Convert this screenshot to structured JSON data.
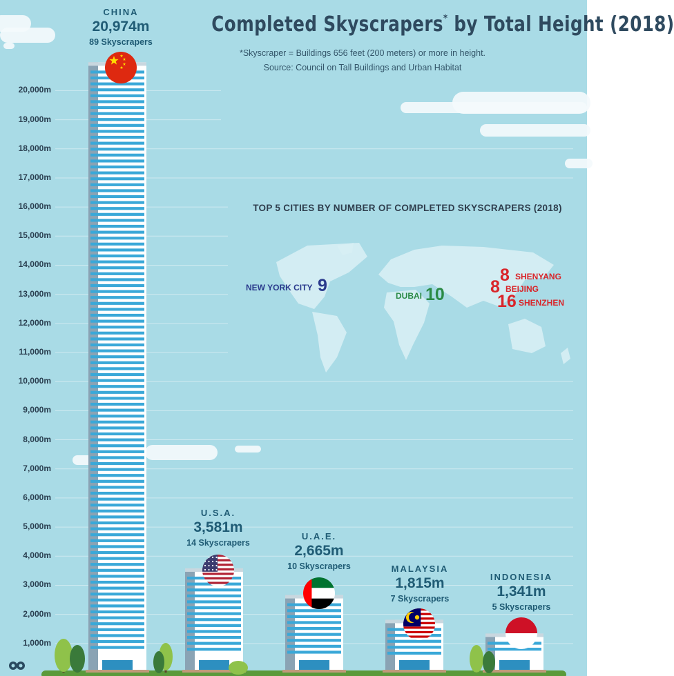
{
  "header": {
    "title": "Completed Skyscrapers",
    "title_asterisk": "*",
    "title_rest": " by Total Height (2018)",
    "note": "*Skyscraper = Buildings 656 feet (200 meters) or more in height.",
    "source": "Source: Council on Tall Buildings and Urban Habitat"
  },
  "chart_data": {
    "type": "bar",
    "title": "Completed Skyscrapers* by Total Height (2018)",
    "categories": [
      "CHINA",
      "U.S.A.",
      "U.A.E.",
      "MALAYSIA",
      "INDONESIA"
    ],
    "values": [
      20974,
      3581,
      2665,
      1815,
      1341
    ],
    "value_labels": [
      "20,974m",
      "3,581m",
      "2,665m",
      "1,815m",
      "1,341m"
    ],
    "counts": [
      89,
      14,
      10,
      7,
      5
    ],
    "count_labels": [
      "89 Skyscrapers",
      "14 Skyscrapers",
      "10 Skyscrapers",
      "7 Skyscrapers",
      "5 Skyscrapers"
    ],
    "yticks": [
      1000,
      2000,
      3000,
      4000,
      5000,
      6000,
      7000,
      8000,
      9000,
      10000,
      11000,
      12000,
      13000,
      14000,
      15000,
      16000,
      17000,
      18000,
      19000,
      20000
    ],
    "ytick_labels": [
      "1,000m",
      "2,000m",
      "3,000m",
      "4,000m",
      "5,000m",
      "6,000m",
      "7,000m",
      "8,000m",
      "9,000m",
      "10,000m",
      "11,000m",
      "12,000m",
      "13,000m",
      "14,000m",
      "15,000m",
      "16,000m",
      "17,000m",
      "18,000m",
      "19,000m",
      "20,000m"
    ],
    "ylim": [
      0,
      21500
    ],
    "grid": true,
    "flags": [
      "china-flag",
      "usa-flag",
      "uae-flag",
      "malaysia-flag",
      "indonesia-flag"
    ]
  },
  "inset": {
    "title": "TOP 5 CITIES BY NUMBER OF COMPLETED SKYSCRAPERS (2018)",
    "cities": [
      {
        "name": "NEW YORK CITY",
        "count": "9",
        "color": "#2a3a8c"
      },
      {
        "name": "DUBAI",
        "count": "10",
        "color": "#2a8a45"
      },
      {
        "name": "SHENYANG",
        "count": "8",
        "color": "#d9252a"
      },
      {
        "name": "BEIJING",
        "count": "8",
        "color": "#d9252a"
      },
      {
        "name": "SHENZHEN",
        "count": "16",
        "color": "#d9252a"
      }
    ]
  },
  "colors": {
    "sky": "#a9dbe6",
    "label": "#205c75",
    "window": "#3aa8d8",
    "ground": "#5a9a3a"
  },
  "icons": {
    "logo": "binoculars-icon"
  }
}
